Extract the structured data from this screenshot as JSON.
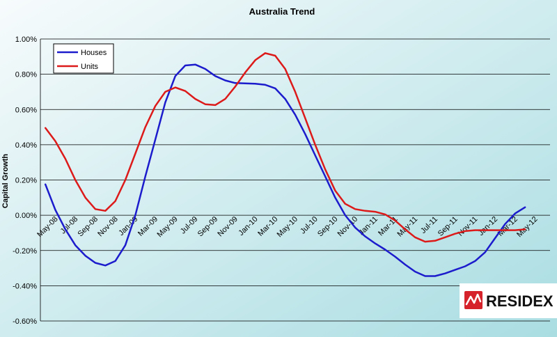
{
  "colors": {
    "houses": "#1c1ccc",
    "units": "#dd1a1a",
    "gridline": "#000000",
    "bg_from": "#f7fbfc",
    "bg_to": "#a9dde2",
    "logo_red": "#d6222a"
  },
  "logo": {
    "text": "RESIDEX",
    "icon": "residex-logo-icon"
  },
  "chart_data": {
    "type": "line",
    "title": "Australia Trend",
    "xlabel": "",
    "ylabel": "Capital Growth",
    "ylim": [
      -0.6,
      1.0
    ],
    "yticks": [
      -0.6,
      -0.4,
      -0.2,
      0.0,
      0.2,
      0.4,
      0.6,
      0.8,
      1.0
    ],
    "ytick_labels": [
      "-0.60%",
      "-0.40%",
      "-0.20%",
      "0.00%",
      "0.20%",
      "0.40%",
      "0.60%",
      "0.80%",
      "1.00%"
    ],
    "grid": true,
    "legend_position": "top-left",
    "x_tick_labels": [
      "May-08",
      "Jul-08",
      "Sep-08",
      "Nov-08",
      "Jan-09",
      "Mar-09",
      "May-09",
      "Jul-09",
      "Sep-09",
      "Nov-09",
      "Jan-10",
      "Mar-10",
      "May-10",
      "Jul-10",
      "Sep-10",
      "Nov-10",
      "Jan-11",
      "Mar-11",
      "May-11",
      "Jul-11",
      "Sep-11",
      "Nov-11",
      "Jan-12",
      "Mar-12",
      "May-12"
    ],
    "x": [
      "Apr-08",
      "May-08",
      "Jun-08",
      "Jul-08",
      "Aug-08",
      "Sep-08",
      "Oct-08",
      "Nov-08",
      "Dec-08",
      "Jan-09",
      "Feb-09",
      "Mar-09",
      "Apr-09",
      "May-09",
      "Jun-09",
      "Jul-09",
      "Aug-09",
      "Sep-09",
      "Oct-09",
      "Nov-09",
      "Dec-09",
      "Jan-10",
      "Feb-10",
      "Mar-10",
      "Apr-10",
      "May-10",
      "Jun-10",
      "Jul-10",
      "Aug-10",
      "Sep-10",
      "Oct-10",
      "Nov-10",
      "Dec-10",
      "Jan-11",
      "Feb-11",
      "Mar-11",
      "Apr-11",
      "May-11",
      "Jun-11",
      "Jul-11",
      "Aug-11",
      "Sep-11",
      "Oct-11",
      "Nov-11",
      "Dec-11",
      "Jan-12",
      "Feb-12",
      "Mar-12",
      "Apr-12",
      "May-12",
      "Jun-12"
    ],
    "series": [
      {
        "name": "Houses",
        "color": "#1c1ccc",
        "values": [
          0.175,
          0.03,
          -0.08,
          -0.17,
          -0.23,
          -0.27,
          -0.285,
          -0.26,
          -0.17,
          0.0,
          0.22,
          0.43,
          0.64,
          0.79,
          0.85,
          0.855,
          0.83,
          0.79,
          0.765,
          0.75,
          0.748,
          0.746,
          0.74,
          0.72,
          0.66,
          0.57,
          0.46,
          0.34,
          0.22,
          0.1,
          0.0,
          -0.07,
          -0.12,
          -0.16,
          -0.195,
          -0.235,
          -0.28,
          -0.32,
          -0.345,
          -0.345,
          -0.33,
          -0.31,
          -0.29,
          -0.26,
          -0.21,
          -0.13,
          -0.05,
          0.01,
          0.045,
          null,
          null
        ]
      },
      {
        "name": "Units",
        "color": "#dd1a1a",
        "values": [
          0.495,
          0.42,
          0.32,
          0.2,
          0.1,
          0.035,
          0.025,
          0.08,
          0.2,
          0.35,
          0.5,
          0.62,
          0.7,
          0.725,
          0.705,
          0.66,
          0.63,
          0.625,
          0.66,
          0.73,
          0.81,
          0.88,
          0.92,
          0.905,
          0.83,
          0.7,
          0.55,
          0.4,
          0.26,
          0.14,
          0.065,
          0.035,
          0.025,
          0.02,
          0.005,
          -0.03,
          -0.08,
          -0.125,
          -0.15,
          -0.145,
          -0.125,
          -0.105,
          -0.09,
          -0.085,
          -0.085,
          -0.085,
          -0.085,
          -0.085,
          -0.08,
          null,
          null
        ]
      }
    ]
  }
}
